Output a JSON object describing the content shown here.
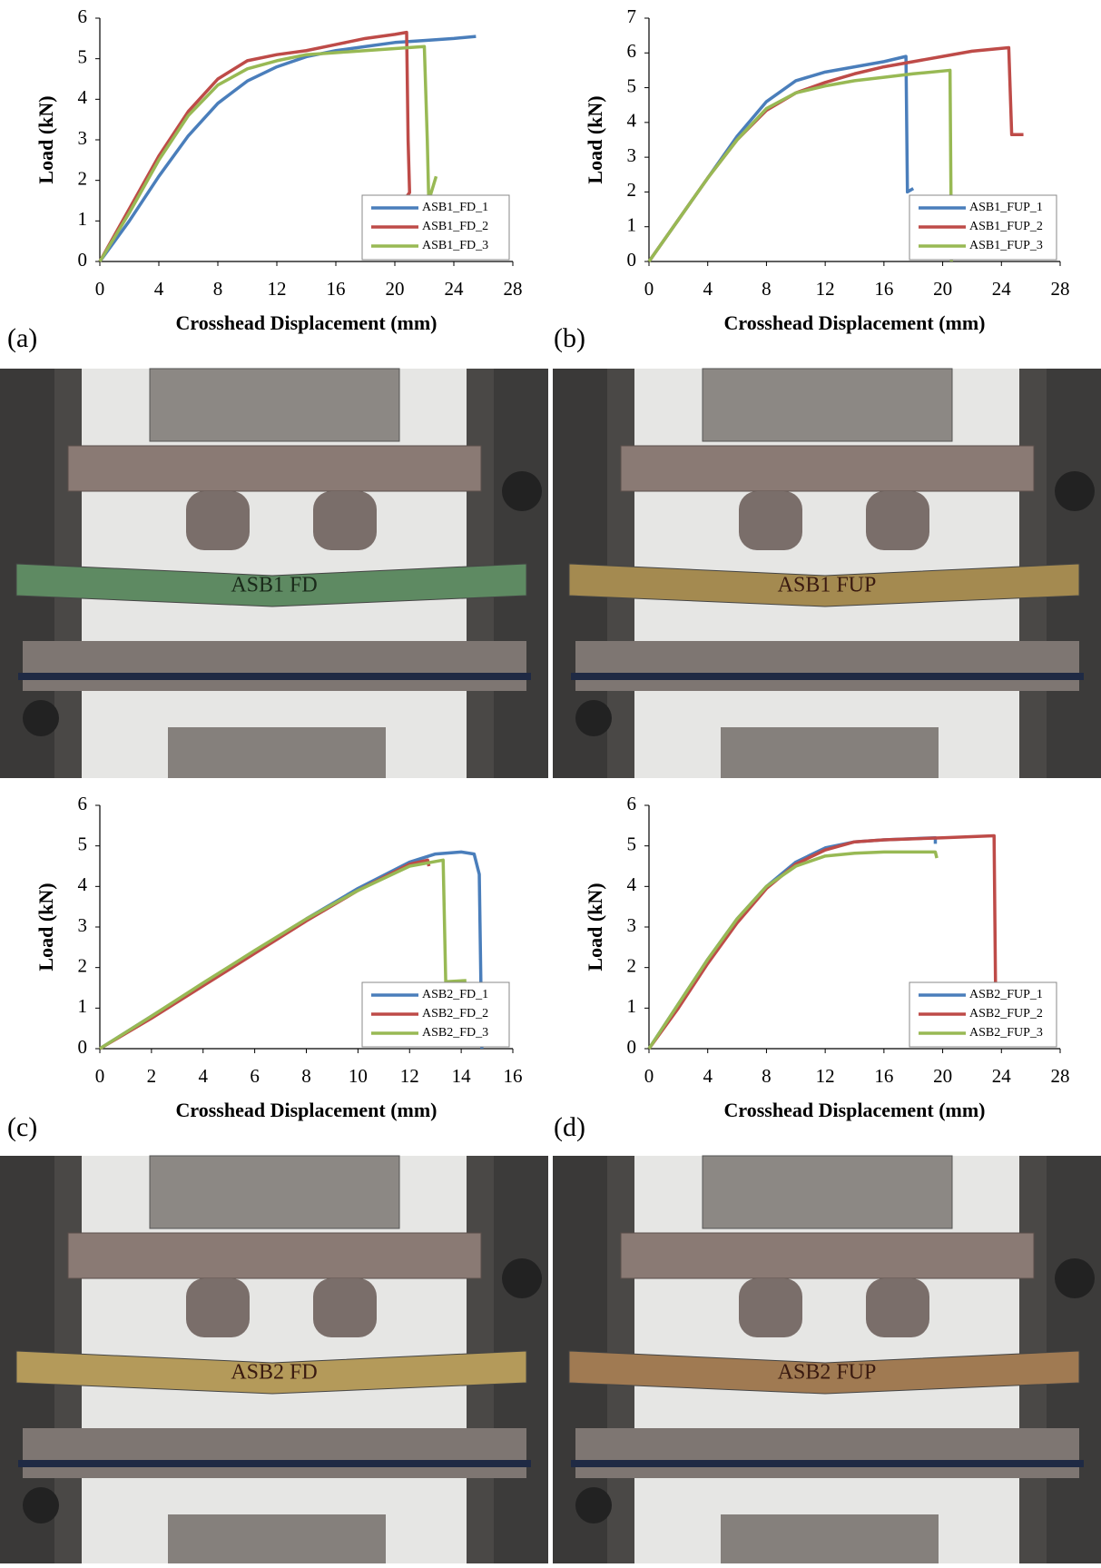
{
  "chart_data": [
    {
      "type": "line",
      "panel_label": "(a)",
      "x_label": "Crosshead Displacement (mm)",
      "y_label": "Load (kN)",
      "xlim": [
        0,
        28
      ],
      "xticks": [
        0,
        4,
        8,
        12,
        16,
        20,
        24,
        28
      ],
      "ylim": [
        0,
        6
      ],
      "yticks": [
        0,
        1,
        2,
        3,
        4,
        5,
        6
      ],
      "legend": "lower right",
      "grid": false,
      "series": [
        {
          "name": "ASB1_FD_1",
          "color": "#4a7ebb",
          "x": [
            0,
            1,
            2,
            4,
            6,
            8,
            10,
            12,
            14,
            16,
            18,
            20,
            22,
            24,
            25.5
          ],
          "values": [
            0,
            0.5,
            1.0,
            2.1,
            3.1,
            3.9,
            4.45,
            4.8,
            5.05,
            5.2,
            5.3,
            5.4,
            5.45,
            5.5,
            5.55
          ]
        },
        {
          "name": "ASB1_FD_2",
          "color": "#be4b48",
          "x": [
            0,
            2,
            4,
            6,
            8,
            10,
            12,
            14,
            16,
            18,
            20,
            20.8,
            20.9,
            21,
            20.8
          ],
          "values": [
            0,
            1.3,
            2.6,
            3.7,
            4.5,
            4.95,
            5.1,
            5.2,
            5.35,
            5.5,
            5.6,
            5.65,
            3,
            1.7,
            1.6
          ]
        },
        {
          "name": "ASB1_FD_3",
          "color": "#98b954",
          "x": [
            0,
            2,
            4,
            6,
            8,
            10,
            12,
            14,
            16,
            18,
            20,
            22,
            22.2,
            22.3,
            22.8
          ],
          "values": [
            0,
            1.2,
            2.5,
            3.6,
            4.35,
            4.75,
            4.95,
            5.1,
            5.15,
            5.2,
            5.25,
            5.3,
            3,
            1.5,
            2.1
          ]
        }
      ]
    },
    {
      "type": "line",
      "panel_label": "(b)",
      "x_label": "Crosshead Displacement (mm)",
      "y_label": "Load (kN)",
      "xlim": [
        0,
        28
      ],
      "xticks": [
        0,
        4,
        8,
        12,
        16,
        20,
        24,
        28
      ],
      "ylim": [
        0,
        7
      ],
      "yticks": [
        0,
        1,
        2,
        3,
        4,
        5,
        6,
        7
      ],
      "legend": "lower right",
      "grid": false,
      "series": [
        {
          "name": "ASB1_FUP_1",
          "color": "#4a7ebb",
          "x": [
            0,
            2,
            4,
            6,
            8,
            10,
            12,
            14,
            16,
            17.5,
            17.6,
            18
          ],
          "values": [
            0,
            1.2,
            2.4,
            3.6,
            4.6,
            5.2,
            5.45,
            5.6,
            5.75,
            5.9,
            2,
            2.1
          ]
        },
        {
          "name": "ASB1_FUP_2",
          "color": "#be4b48",
          "x": [
            0,
            2,
            4,
            6,
            8,
            10,
            12,
            14,
            16,
            18,
            20,
            22,
            24.5,
            24.7,
            25.5
          ],
          "values": [
            0,
            1.2,
            2.4,
            3.5,
            4.35,
            4.85,
            5.15,
            5.4,
            5.6,
            5.75,
            5.9,
            6.05,
            6.15,
            3.65,
            3.65
          ]
        },
        {
          "name": "ASB1_FUP_3",
          "color": "#98b954",
          "x": [
            0,
            2,
            4,
            6,
            8,
            10,
            12,
            14,
            16,
            18,
            20.5,
            20.6
          ],
          "values": [
            0,
            1.2,
            2.4,
            3.5,
            4.4,
            4.85,
            5.05,
            5.2,
            5.3,
            5.4,
            5.5,
            0
          ]
        }
      ]
    },
    {
      "type": "line",
      "panel_label": "(c)",
      "x_label": "Crosshead Displacement (mm)",
      "y_label": "Load (kN)",
      "xlim": [
        0,
        16
      ],
      "xticks": [
        0,
        2,
        4,
        6,
        8,
        10,
        12,
        14,
        16
      ],
      "ylim": [
        0,
        6
      ],
      "yticks": [
        0,
        1,
        2,
        3,
        4,
        5,
        6
      ],
      "legend": "lower right",
      "grid": false,
      "series": [
        {
          "name": "ASB2_FD_1",
          "color": "#4a7ebb",
          "x": [
            0,
            2,
            4,
            6,
            8,
            10,
            12,
            13,
            14,
            14.5,
            14.7,
            14.8
          ],
          "values": [
            0,
            0.8,
            1.6,
            2.4,
            3.2,
            3.95,
            4.6,
            4.8,
            4.85,
            4.8,
            4.3,
            0
          ]
        },
        {
          "name": "ASB2_FD_2",
          "color": "#be4b48",
          "x": [
            0,
            2,
            4,
            6,
            8,
            10,
            12,
            12.7,
            12.75
          ],
          "values": [
            0,
            0.75,
            1.55,
            2.35,
            3.15,
            3.9,
            4.55,
            4.65,
            4.5
          ]
        },
        {
          "name": "ASB2_FD_3",
          "color": "#98b954",
          "x": [
            0,
            2,
            4,
            6,
            8,
            10,
            12,
            13.3,
            13.4,
            14.2
          ],
          "values": [
            0,
            0.8,
            1.62,
            2.42,
            3.2,
            3.9,
            4.5,
            4.65,
            1.65,
            1.68
          ]
        }
      ]
    },
    {
      "type": "line",
      "panel_label": "(d)",
      "x_label": "Crosshead Displacement (mm)",
      "y_label": "Load (kN)",
      "xlim": [
        0,
        28
      ],
      "xticks": [
        0,
        4,
        8,
        12,
        16,
        20,
        24,
        28
      ],
      "ylim": [
        0,
        6
      ],
      "yticks": [
        0,
        1,
        2,
        3,
        4,
        5,
        6
      ],
      "legend": "lower right",
      "grid": false,
      "series": [
        {
          "name": "ASB2_FUP_1",
          "color": "#4a7ebb",
          "x": [
            0,
            2,
            4,
            6,
            8,
            10,
            12,
            14,
            16,
            19.5,
            19.5
          ],
          "values": [
            0,
            1.1,
            2.2,
            3.2,
            4.0,
            4.6,
            4.95,
            5.1,
            5.15,
            5.2,
            5.05
          ]
        },
        {
          "name": "ASB2_FUP_2",
          "color": "#be4b48",
          "x": [
            0,
            2,
            4,
            6,
            8,
            10,
            12,
            14,
            16,
            20,
            23.5,
            23.6
          ],
          "values": [
            0,
            1.0,
            2.1,
            3.1,
            3.95,
            4.55,
            4.9,
            5.1,
            5.15,
            5.2,
            5.25,
            1.5
          ]
        },
        {
          "name": "ASB2_FUP_3",
          "color": "#98b954",
          "x": [
            0,
            2,
            4,
            6,
            8,
            10,
            12,
            14,
            16,
            19.5,
            19.6
          ],
          "values": [
            0,
            1.1,
            2.2,
            3.2,
            4.0,
            4.5,
            4.75,
            4.82,
            4.85,
            4.85,
            4.7
          ]
        }
      ]
    }
  ],
  "photos": [
    {
      "label": "ASB1 FD",
      "color": "#5e8a62"
    },
    {
      "label": "ASB1 FUP",
      "color": "#a48a50"
    },
    {
      "label": "ASB2 FD",
      "color": "#b49a5a"
    },
    {
      "label": "ASB2 FUP",
      "color": "#a07a52"
    }
  ]
}
